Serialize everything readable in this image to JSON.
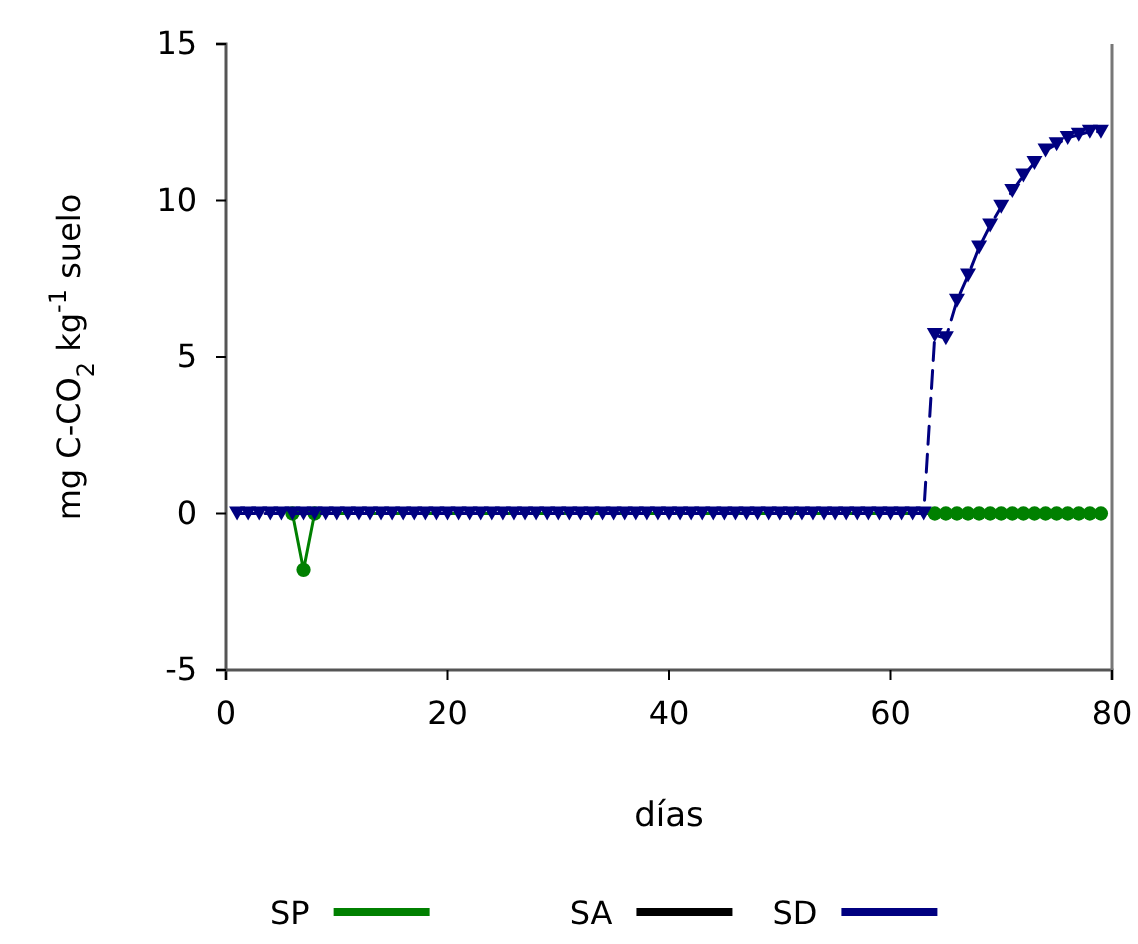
{
  "chart_data": {
    "type": "line",
    "xlabel": "días",
    "ylabel": "mg C-CO$_{2}$ kg$^{-1}$ suelo",
    "xlim": [
      0,
      80
    ],
    "xticks": [
      0,
      20,
      40,
      60,
      80
    ],
    "ylim": [
      -5,
      15
    ],
    "yticks": [
      -5,
      0,
      5,
      10,
      15
    ],
    "legend": "bottom",
    "series": [
      {
        "name": "SA",
        "color": "#000000"
      },
      {
        "name": "SP",
        "color": "#008000",
        "marker": "circle",
        "line_style": "solid",
        "x": [
          6,
          7,
          8,
          64,
          65,
          66,
          67,
          68,
          69,
          70,
          71,
          72,
          73,
          74,
          75,
          76,
          77,
          78,
          79
        ],
        "values": [
          0,
          -1.8,
          0,
          0,
          0,
          0,
          0,
          0,
          0,
          0,
          0,
          0,
          0,
          0,
          0,
          0,
          0,
          0,
          0
        ]
      },
      {
        "name": "SD",
        "color": "#000080",
        "marker": "triangle",
        "line_style": "dashed",
        "x": [
          1,
          2,
          3,
          4,
          5,
          6,
          7,
          8,
          9,
          10,
          11,
          12,
          13,
          14,
          15,
          16,
          17,
          18,
          19,
          20,
          21,
          22,
          23,
          24,
          25,
          26,
          27,
          28,
          29,
          30,
          31,
          32,
          33,
          34,
          35,
          36,
          37,
          38,
          39,
          40,
          41,
          42,
          43,
          44,
          45,
          46,
          47,
          48,
          49,
          50,
          51,
          52,
          53,
          54,
          55,
          56,
          57,
          58,
          59,
          60,
          61,
          62,
          63,
          64,
          65,
          66,
          67,
          68,
          69,
          70,
          71,
          72,
          73,
          74,
          75,
          76,
          77,
          78,
          79
        ],
        "values": [
          0,
          0,
          0,
          0,
          0,
          0,
          0,
          0,
          0,
          0,
          0,
          0,
          0,
          0,
          0,
          0,
          0,
          0,
          0,
          0,
          0,
          0,
          0,
          0,
          0,
          0,
          0,
          0,
          0,
          0,
          0,
          0,
          0,
          0,
          0,
          0,
          0,
          0,
          0,
          0,
          0,
          0,
          0,
          0,
          0,
          0,
          0,
          0,
          0,
          0,
          0,
          0,
          0,
          0,
          0,
          0,
          0,
          0,
          0,
          0,
          0,
          0,
          0,
          5.7,
          5.6,
          6.8,
          7.6,
          8.5,
          9.2,
          9.8,
          10.3,
          10.8,
          11.2,
          11.6,
          11.8,
          12.0,
          12.1,
          12.2,
          12.2
        ]
      }
    ]
  }
}
